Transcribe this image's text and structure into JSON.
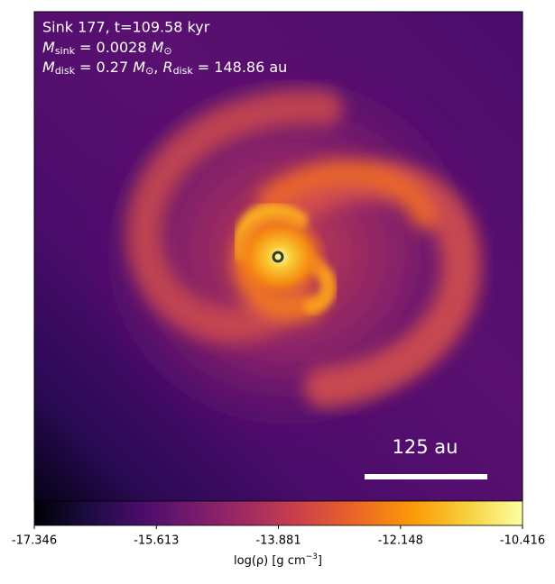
{
  "chart_data": {
    "type": "density-map",
    "annotations": {
      "line1": "Sink 177, t=109.58 kyr",
      "line2": {
        "symbol": "M",
        "sub": "sink",
        "text": " = 0.0028 ",
        "unit": "M",
        "unit_sub": "⊙"
      },
      "line3": {
        "symbol": "M",
        "sub": "disk",
        "text": " = 0.27 ",
        "unit": "M",
        "unit_sub": "⊙",
        "sep": ", ",
        "symbol2": "R",
        "sub2": "disk",
        "text2": " = 148.86 au"
      }
    },
    "scale_bar": "125 au",
    "colorbar": {
      "label": "log(ρ) [g cm",
      "label_sup": "−3",
      "label_end": "]",
      "clim": [
        -17.346,
        -10.416
      ],
      "ticks": [
        -17.346,
        -15.613,
        -13.881,
        -12.148,
        -10.416
      ],
      "colormap": [
        "#000004",
        "#1b0c41",
        "#4a0c6b",
        "#781c6d",
        "#a52c60",
        "#cf4446",
        "#ed6925",
        "#fb9b06",
        "#f7d13d",
        "#fcffa4"
      ]
    }
  }
}
